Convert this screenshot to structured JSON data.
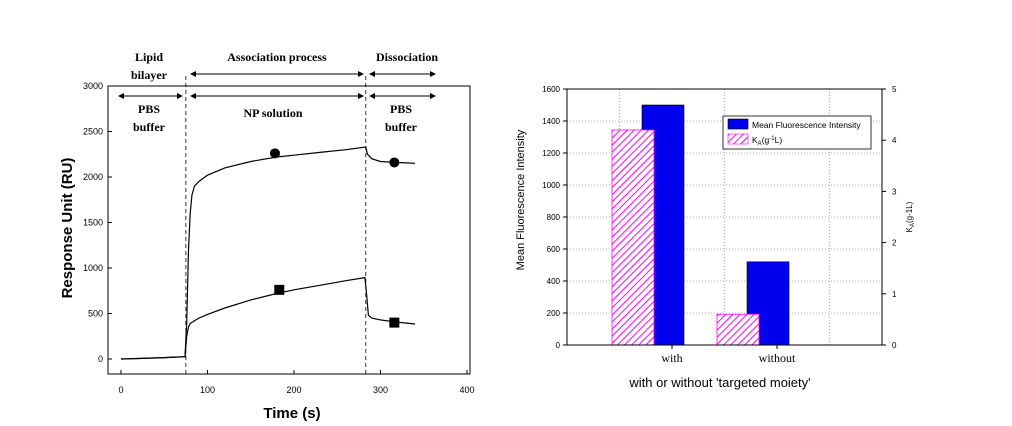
{
  "chart_data": [
    {
      "type": "line",
      "xlabel": "Time (s)",
      "ylabel": "Response Unit (RU)",
      "xlim": [
        0,
        400
      ],
      "ylim": [
        0,
        3000
      ],
      "xticks": [
        0,
        100,
        200,
        300,
        400
      ],
      "yticks": [
        0,
        500,
        1000,
        1500,
        2000,
        2500,
        3000
      ],
      "phase_boundaries": [
        75,
        283
      ],
      "phases": {
        "lipid": "Lipid bilayer",
        "association": "Association process",
        "dissociation": "Dissociation",
        "pbs1": "PBS buffer",
        "np": "NP solution",
        "pbs2": "PBS buffer"
      },
      "series": [
        {
          "marker": "circle",
          "x": [
            0,
            20,
            50,
            74,
            76,
            78,
            80,
            82,
            85,
            90,
            100,
            120,
            150,
            180,
            200,
            230,
            260,
            283,
            285,
            290,
            300,
            315,
            330,
            340
          ],
          "y": [
            0,
            5,
            15,
            25,
            400,
            1200,
            1600,
            1800,
            1900,
            1950,
            2020,
            2100,
            2170,
            2220,
            2240,
            2270,
            2300,
            2330,
            2250,
            2200,
            2170,
            2160,
            2155,
            2150
          ],
          "marker_points": [
            [
              178,
              2260
            ],
            [
              316,
              2160
            ]
          ]
        },
        {
          "marker": "square",
          "x": [
            0,
            20,
            50,
            74,
            76,
            78,
            80,
            85,
            90,
            100,
            120,
            150,
            180,
            200,
            230,
            260,
            282,
            284,
            286,
            290,
            300,
            315,
            330,
            340
          ],
          "y": [
            0,
            5,
            15,
            25,
            250,
            350,
            390,
            420,
            450,
            490,
            560,
            650,
            720,
            760,
            810,
            860,
            895,
            700,
            480,
            450,
            430,
            410,
            395,
            385
          ],
          "marker_points": [
            [
              183,
              760
            ],
            [
              316,
              400
            ]
          ]
        }
      ]
    },
    {
      "type": "bar",
      "categories": [
        "with",
        "without"
      ],
      "xlabel": "with or without 'targeted moiety'",
      "ylabel": "Mean Fluorescence Intensity",
      "ylabel_right": "K",
      "ylabel_right_sub": "A",
      "ylabel_right_tail": "(g-1L)",
      "ylim": [
        0,
        1600
      ],
      "ylim_right": [
        0,
        5
      ],
      "yticks": [
        0,
        200,
        400,
        600,
        800,
        1000,
        1200,
        1400,
        1600
      ],
      "yticks_right": [
        0,
        1,
        2,
        3,
        4,
        5
      ],
      "grid": true,
      "legend_position": "top-right",
      "series": [
        {
          "name": "Mean Fluorescence Intensity",
          "axis": "left",
          "values": [
            1500,
            520
          ],
          "color": "#0000ee"
        },
        {
          "name": "K",
          "name_sub": "A",
          "name_tail_pre": "(g",
          "name_sup": "-1",
          "name_tail": "L)",
          "axis": "right",
          "values": [
            4.2,
            0.6
          ],
          "color": "#ff00ff"
        }
      ]
    }
  ]
}
